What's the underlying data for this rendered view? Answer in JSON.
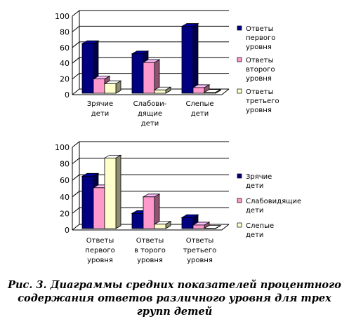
{
  "colors": {
    "navy": "#000080",
    "pink": "#ff99cc",
    "cream": "#ffffcc"
  },
  "chart_data": [
    {
      "type": "bar",
      "categories": [
        [
          "Зрячие",
          "дети"
        ],
        [
          "Слабови-",
          "дящие",
          "дети"
        ],
        [
          "Слепые",
          "дети"
        ]
      ],
      "series": [
        {
          "name": [
            "Ответы",
            "первого",
            "уровня"
          ],
          "color": "#000080",
          "values": [
            65,
            52,
            87
          ]
        },
        {
          "name": [
            "Ответы",
            "второго",
            "уровня"
          ],
          "color": "#ff99cc",
          "values": [
            20,
            41,
            9
          ]
        },
        {
          "name": [
            "Ответы",
            "третьего",
            "уровня"
          ],
          "color": "#ffffcc",
          "values": [
            14,
            6,
            3
          ]
        }
      ],
      "ylim": [
        0,
        100
      ],
      "yticks": [
        0,
        20,
        40,
        60,
        80,
        100
      ],
      "grid": true,
      "legend": "right",
      "title": "",
      "xlabel": "",
      "ylabel": ""
    },
    {
      "type": "bar",
      "categories": [
        [
          "Ответы",
          "первого",
          "уровня"
        ],
        [
          "Ответы",
          "в торого",
          "уровня"
        ],
        [
          "Ответы",
          "третьего",
          "уровня"
        ]
      ],
      "series": [
        {
          "name": [
            "Зрячие",
            "дети"
          ],
          "color": "#000080",
          "values": [
            65,
            20,
            15
          ]
        },
        {
          "name": [
            "Слабовидящие",
            "дети"
          ],
          "color": "#ff99cc",
          "values": [
            51,
            40,
            6
          ]
        },
        {
          "name": [
            "Слепые",
            "дети"
          ],
          "color": "#ffffcc",
          "values": [
            87,
            7,
            2
          ]
        }
      ],
      "ylim": [
        0,
        100
      ],
      "yticks": [
        0,
        20,
        40,
        60,
        80,
        100
      ],
      "grid": true,
      "legend": "right",
      "title": "",
      "xlabel": "",
      "ylabel": ""
    }
  ],
  "caption": "Рис. 3. Диаграммы средних показателей процентного содержания ответов различного уровня для трех групп детей"
}
